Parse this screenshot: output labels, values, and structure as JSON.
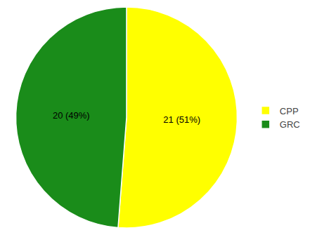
{
  "chart_data": {
    "type": "pie",
    "categories": [
      "CPP",
      "GRC"
    ],
    "values": [
      21,
      20
    ],
    "value_labels": [
      "21 (51%)",
      "20 (49%)"
    ],
    "colors": [
      "#ffff00",
      "#1a8c1a"
    ],
    "data_labels": true,
    "legend": "right"
  }
}
